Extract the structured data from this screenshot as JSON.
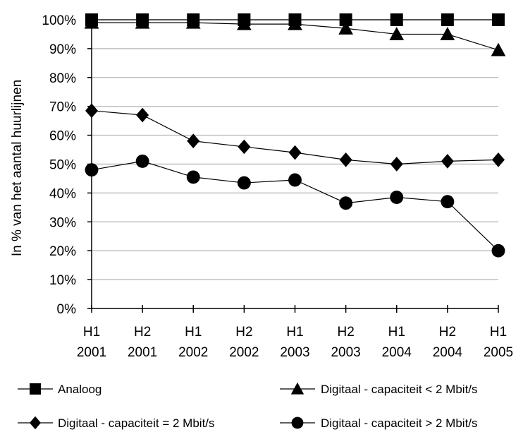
{
  "chart_data": {
    "type": "line",
    "title": "",
    "ylabel": "In % van het aantal huurlijnen",
    "xlabel": "",
    "ylim": [
      0,
      100
    ],
    "yticks": [
      "0%",
      "10%",
      "20%",
      "30%",
      "40%",
      "50%",
      "60%",
      "70%",
      "80%",
      "90%",
      "100%"
    ],
    "categories": [
      {
        "line1": "H1",
        "line2": "2001"
      },
      {
        "line1": "H2",
        "line2": "2001"
      },
      {
        "line1": "H1",
        "line2": "2002"
      },
      {
        "line1": "H2",
        "line2": "2002"
      },
      {
        "line1": "H1",
        "line2": "2003"
      },
      {
        "line1": "H2",
        "line2": "2003"
      },
      {
        "line1": "H1",
        "line2": "2004"
      },
      {
        "line1": "H2",
        "line2": "2004"
      },
      {
        "line1": "H1",
        "line2": "2005"
      }
    ],
    "grid": true,
    "legend_position": "bottom",
    "series": [
      {
        "name": "Analoog",
        "marker": "square",
        "values": [
          100,
          100,
          100,
          100,
          100,
          100,
          100,
          100,
          100
        ]
      },
      {
        "name": "Digitaal - capaciteit < 2 Mbit/s",
        "marker": "triangle",
        "values": [
          99,
          99,
          99,
          98.5,
          98.5,
          97,
          95,
          95,
          89.5
        ]
      },
      {
        "name": "Digitaal - capaciteit = 2 Mbit/s",
        "marker": "diamond",
        "values": [
          68.5,
          67,
          58,
          56,
          54,
          51.5,
          50,
          51,
          51.5
        ]
      },
      {
        "name": "Digitaal - capaciteit > 2 Mbit/s",
        "marker": "circle",
        "values": [
          48,
          51,
          45.5,
          43.5,
          44.5,
          36.5,
          38.5,
          37,
          20
        ]
      }
    ],
    "colors": {
      "line": "#000000",
      "grid": "#c0c0c0",
      "axis": "#000000",
      "background": "#ffffff"
    }
  }
}
